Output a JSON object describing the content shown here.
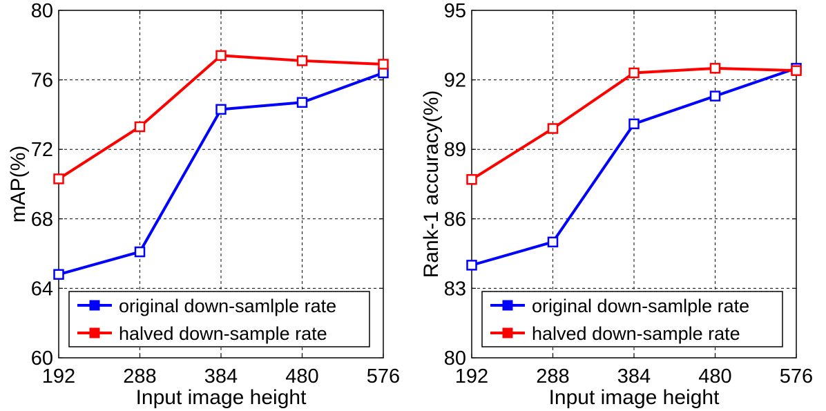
{
  "chart_data": [
    {
      "type": "line",
      "title": "",
      "xlabel": "Input image height",
      "ylabel": "mAP(%)",
      "categories": [
        "192",
        "288",
        "384",
        "480",
        "576"
      ],
      "yticks": [
        "60",
        "64",
        "68",
        "72",
        "76",
        "80"
      ],
      "ylim": [
        60,
        80
      ],
      "grid": true,
      "legend_position": "bottom-left",
      "series": [
        {
          "name": "original down-samlple rate",
          "color": "#0000ff",
          "values": [
            64.8,
            66.1,
            74.3,
            74.7,
            76.4
          ]
        },
        {
          "name": "halved down-sample rate",
          "color": "#ff0000",
          "values": [
            70.3,
            73.3,
            77.4,
            77.1,
            76.9
          ]
        }
      ]
    },
    {
      "type": "line",
      "title": "",
      "xlabel": "Input image height",
      "ylabel": "Rank-1 accuracy(%)",
      "categories": [
        "192",
        "288",
        "384",
        "480",
        "576"
      ],
      "yticks": [
        "80",
        "83",
        "86",
        "89",
        "92",
        "95"
      ],
      "ylim": [
        80,
        95
      ],
      "grid": true,
      "legend_position": "bottom-left",
      "series": [
        {
          "name": "original down-samlple rate",
          "color": "#0000ff",
          "values": [
            84.0,
            85.0,
            90.1,
            91.3,
            92.5
          ]
        },
        {
          "name": "halved down-sample rate",
          "color": "#ff0000",
          "values": [
            87.7,
            89.9,
            92.3,
            92.5,
            92.4
          ]
        }
      ]
    }
  ]
}
